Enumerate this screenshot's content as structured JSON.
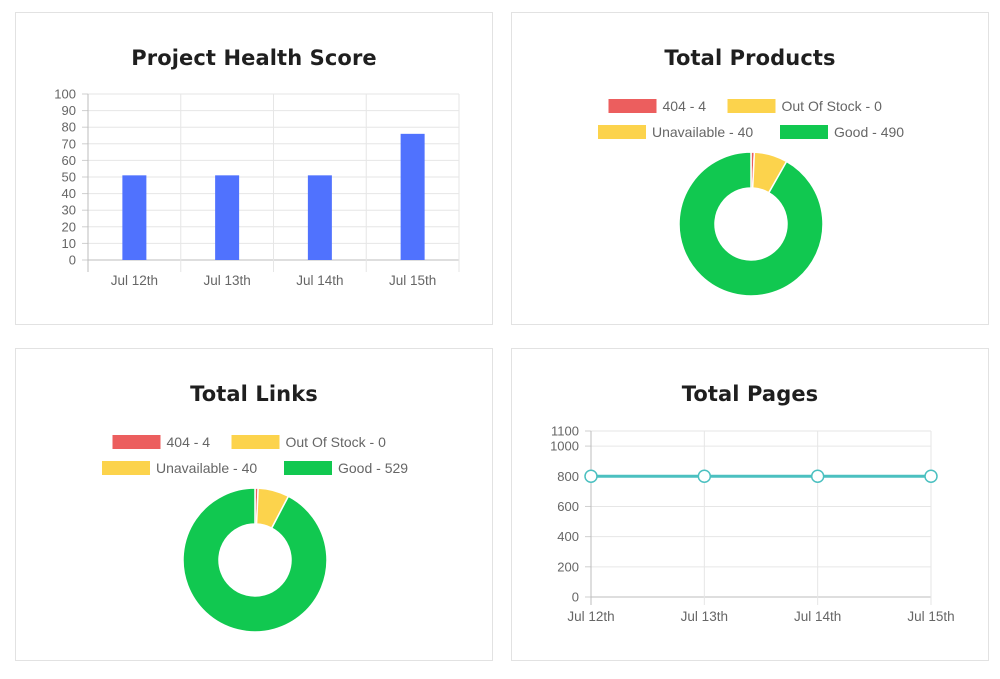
{
  "chart_data": [
    {
      "type": "bar",
      "title": "Project Health Score",
      "categories": [
        "Jul 12th",
        "Jul 13th",
        "Jul 14th",
        "Jul 15th"
      ],
      "series": [
        {
          "values": [
            51,
            51,
            51,
            76
          ],
          "color": "#5072fe"
        }
      ],
      "ylim": [
        0,
        100
      ],
      "yticks": [
        "0",
        "10",
        "20",
        "30",
        "40",
        "50",
        "60",
        "70",
        "80",
        "90",
        "100"
      ],
      "grid": true
    },
    {
      "type": "pie",
      "title": "Total Products",
      "legend": [
        {
          "label": "404 - 4",
          "value": 4,
          "color": "#ec5e5e"
        },
        {
          "label": "Out Of Stock - 0",
          "value": 0,
          "color": "#fcd34c"
        },
        {
          "label": "Unavailable - 40",
          "value": 40,
          "color": "#fcd34c"
        },
        {
          "label": "Good - 490",
          "value": 490,
          "color": "#11c850"
        }
      ],
      "legend_position": "top"
    },
    {
      "type": "pie",
      "title": "Total Links",
      "legend": [
        {
          "label": "404 - 4",
          "value": 4,
          "color": "#ec5e5e"
        },
        {
          "label": "Out Of Stock - 0",
          "value": 0,
          "color": "#fcd34c"
        },
        {
          "label": "Unavailable - 40",
          "value": 40,
          "color": "#fcd34c"
        },
        {
          "label": "Good - 529",
          "value": 529,
          "color": "#11c850"
        }
      ],
      "legend_position": "top"
    },
    {
      "type": "line",
      "title": "Total Pages",
      "x": [
        "Jul 12th",
        "Jul 13th",
        "Jul 14th",
        "Jul 15th"
      ],
      "series": [
        {
          "values": [
            800,
            800,
            800,
            800
          ],
          "color": "#4bc0c0"
        }
      ],
      "ylim": [
        0,
        1100
      ],
      "yticks": [
        "0",
        "200",
        "400",
        "600",
        "800",
        "1000",
        "1100"
      ],
      "grid": true
    }
  ]
}
